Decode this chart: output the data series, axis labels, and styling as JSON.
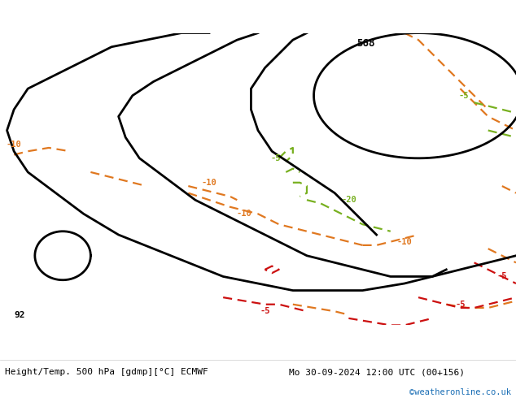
{
  "title_left": "Height/Temp. 500 hPa [gdmp][°C] ECMWF",
  "title_right": "Mo 30-09-2024 12:00 UTC (00+156)",
  "credit": "©weatheronline.co.uk",
  "background_land": "#b5d4a0",
  "background_sea": "#c8d8e4",
  "coastline_color": "#a0a0a0",
  "black_color": "#000000",
  "orange_color": "#e07820",
  "green_color": "#78b020",
  "red_color": "#cc1010",
  "label_568": "568",
  "label_92": "92",
  "bottom_text_color": "#000000",
  "credit_color": "#1a6eb5",
  "font_mono": "DejaVu Sans Mono",
  "figsize": [
    6.34,
    4.9
  ],
  "dpi": 100,
  "extent": [
    -22,
    52,
    24,
    66
  ]
}
